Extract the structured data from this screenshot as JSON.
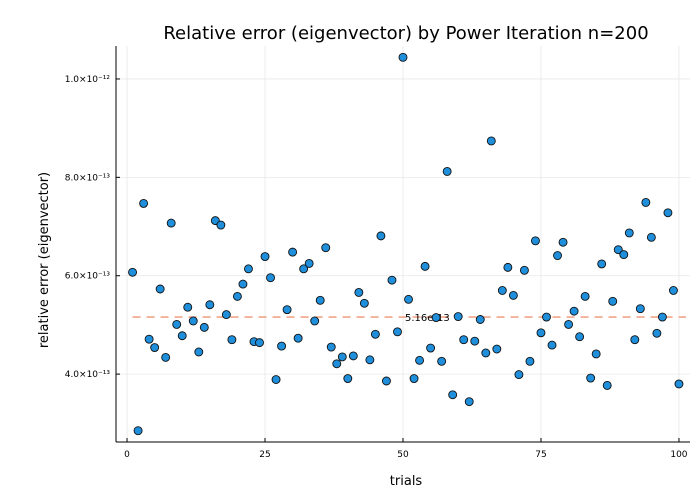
{
  "chart_data": {
    "type": "scatter",
    "title": "Relative error (eigenvector) by Power Iteration  n=200",
    "xlabel": "trials",
    "ylabel": "relative error (eigenvector)",
    "xlim": [
      -2,
      102
    ],
    "ylim": [
      2.62e-13,
      1.067e-12
    ],
    "xticks": [
      0,
      25,
      50,
      75,
      100
    ],
    "xtick_labels": [
      "0",
      "25",
      "50",
      "75",
      "100"
    ],
    "yticks": [
      4e-13,
      6e-13,
      8e-13,
      1e-12
    ],
    "ytick_labels": [
      "4.0×10⁻¹³",
      "6.0×10⁻¹³",
      "8.0×10⁻¹³",
      "1.0×10⁻¹²"
    ],
    "grid": true,
    "legend": "none",
    "x": [
      1,
      2,
      3,
      4,
      5,
      6,
      7,
      8,
      9,
      10,
      11,
      12,
      13,
      14,
      15,
      16,
      17,
      18,
      19,
      20,
      21,
      22,
      23,
      24,
      25,
      26,
      27,
      28,
      29,
      30,
      31,
      32,
      33,
      34,
      35,
      36,
      37,
      38,
      39,
      40,
      41,
      42,
      43,
      44,
      45,
      46,
      47,
      48,
      49,
      50,
      51,
      52,
      53,
      54,
      55,
      56,
      57,
      58,
      59,
      60,
      61,
      62,
      63,
      64,
      65,
      66,
      67,
      68,
      69,
      70,
      71,
      72,
      73,
      74,
      75,
      76,
      77,
      78,
      79,
      80,
      81,
      82,
      83,
      84,
      85,
      86,
      87,
      88,
      89,
      90,
      91,
      92,
      93,
      94,
      95,
      96,
      97,
      98,
      99,
      100
    ],
    "y": [
      6.07e-13,
      2.85e-13,
      7.47e-13,
      4.71e-13,
      4.54e-13,
      5.73e-13,
      4.34e-13,
      7.07e-13,
      5.01e-13,
      4.78e-13,
      5.36e-13,
      5.08e-13,
      4.45e-13,
      4.95e-13,
      5.41e-13,
      7.12e-13,
      7.03e-13,
      5.21e-13,
      4.7e-13,
      5.58e-13,
      5.83e-13,
      6.14e-13,
      4.66e-13,
      4.64e-13,
      6.39e-13,
      5.96e-13,
      3.89e-13,
      4.57e-13,
      5.31e-13,
      6.48e-13,
      4.73e-13,
      6.14e-13,
      6.25e-13,
      5.08e-13,
      5.5e-13,
      6.57e-13,
      4.55e-13,
      4.21e-13,
      4.35e-13,
      3.91e-13,
      4.37e-13,
      5.66e-13,
      5.44e-13,
      4.29e-13,
      4.81e-13,
      6.81e-13,
      3.86e-13,
      5.91e-13,
      4.86e-13,
      1.044e-12,
      5.52e-13,
      3.91e-13,
      4.28e-13,
      6.19e-13,
      4.53e-13,
      5.15e-13,
      4.26e-13,
      8.12e-13,
      3.58e-13,
      5.17e-13,
      4.7e-13,
      3.44e-13,
      4.67e-13,
      5.11e-13,
      4.43e-13,
      8.74e-13,
      4.51e-13,
      5.7e-13,
      6.17e-13,
      5.6e-13,
      3.99e-13,
      6.11e-13,
      4.26e-13,
      6.71e-13,
      4.84e-13,
      5.16e-13,
      4.59e-13,
      6.41e-13,
      6.68e-13,
      5.01e-13,
      5.28e-13,
      4.76e-13,
      5.58e-13,
      3.92e-13,
      4.41e-13,
      6.24e-13,
      3.77e-13,
      5.48e-13,
      6.53e-13,
      6.43e-13,
      6.87e-13,
      4.7e-13,
      5.33e-13,
      7.49e-13,
      6.78e-13,
      4.83e-13,
      5.16e-13,
      7.28e-13,
      5.7e-13,
      3.8e-13
    ],
    "reference_line": {
      "value": 5.16e-13,
      "label": "5.16e-13",
      "style": "dashed"
    },
    "colors": {
      "points": "#1f8fdc",
      "point_edge": "#111111",
      "reference": "#f0a58a",
      "grid": "#e8e8e8",
      "axis": "#000000"
    }
  }
}
